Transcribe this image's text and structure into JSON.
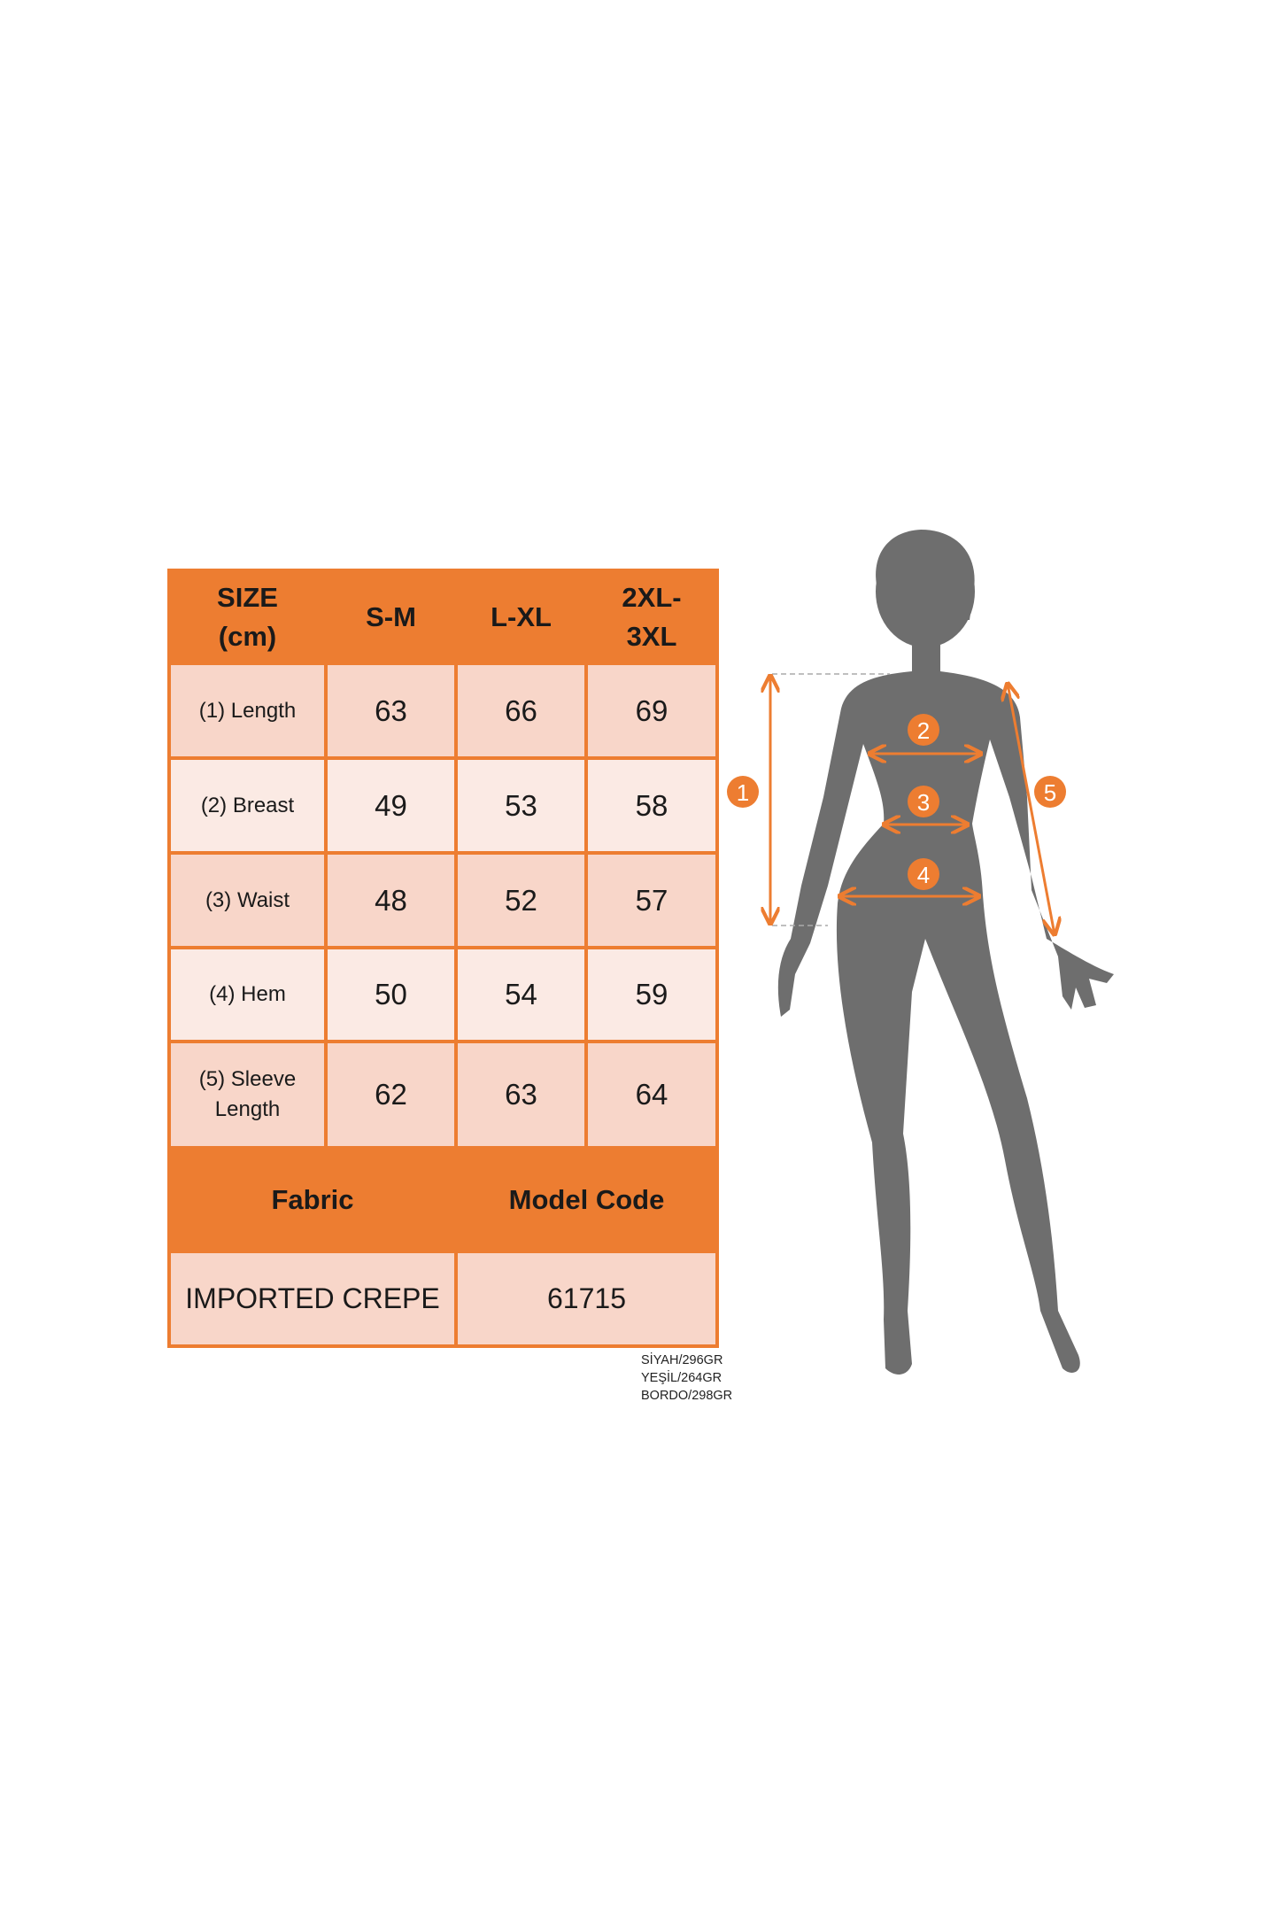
{
  "table": {
    "header": [
      "SIZE (cm)",
      "S-M",
      "L-XL",
      "2XL-3XL"
    ],
    "header_lines": [
      [
        "SIZE",
        "(cm)"
      ],
      [
        "S-M"
      ],
      [
        "L-XL"
      ],
      [
        "2XL-",
        "3XL"
      ]
    ],
    "rows": [
      {
        "label": "(1) Length",
        "values": [
          "63",
          "66",
          "69"
        ]
      },
      {
        "label": "(2) Breast",
        "values": [
          "49",
          "53",
          "58"
        ]
      },
      {
        "label": "(3) Waist",
        "values": [
          "48",
          "52",
          "57"
        ]
      },
      {
        "label": "(4) Hem",
        "values": [
          "50",
          "54",
          "59"
        ]
      },
      {
        "label_lines": [
          "(5) Sleeve",
          "Length"
        ],
        "values": [
          "62",
          "63",
          "64"
        ]
      }
    ],
    "footer_headers": [
      "Fabric",
      "Model Code"
    ],
    "footer_values": [
      "IMPORTED CREPE",
      "61715"
    ]
  },
  "notes": [
    "SİYAH/296GR",
    "YEŞİL/264GR",
    "BORDO/298GR"
  ],
  "figure": {
    "badges": [
      "1",
      "2",
      "3",
      "4",
      "5"
    ]
  },
  "colors": {
    "accent": "#ED7D31",
    "header_text": "#FFF2CC",
    "cell_dark": "#F8D6C9",
    "cell_light": "#FBEAE4",
    "silhouette": "#6E6E6E"
  }
}
